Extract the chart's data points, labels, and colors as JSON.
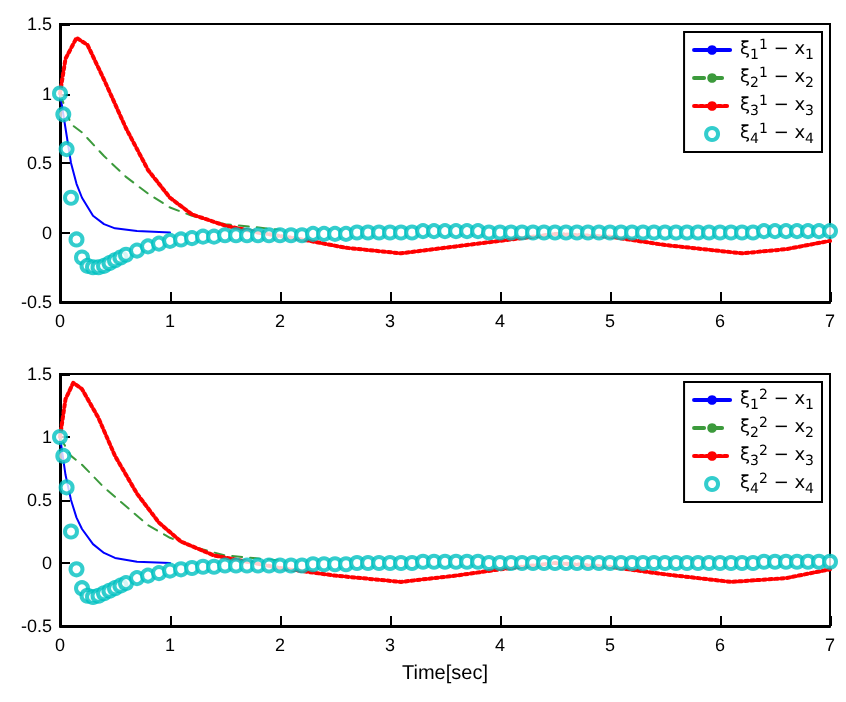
{
  "chart_data": [
    {
      "type": "line",
      "xlim": [
        0,
        7
      ],
      "xticks": [
        0,
        1,
        2,
        3,
        4,
        5,
        6,
        7
      ],
      "ylim": [
        -0.5,
        1.5
      ],
      "yticks": [
        -0.5,
        0,
        0.5,
        1,
        1.5
      ],
      "grid": false,
      "legend": "top right",
      "series": [
        {
          "name": "ξ$_{1}$$^{1}$ − x$_{1}$",
          "color": "#0000ff",
          "type": "line",
          "line_style": "solid",
          "marker": "none",
          "x": [
            0,
            0.05,
            0.1,
            0.15,
            0.2,
            0.3,
            0.4,
            0.5,
            0.7,
            1
          ],
          "values": [
            1,
            0.75,
            0.5,
            0.35,
            0.25,
            0.12,
            0.06,
            0.03,
            0.01,
            0
          ]
        },
        {
          "name": "ξ$_{2}$$^{1}$ − x$_{2}$",
          "color": "#3c9a3c",
          "type": "line",
          "line_style": "dashed",
          "marker": "none",
          "x": [
            0,
            0.1,
            0.2,
            0.4,
            0.6,
            0.8,
            1,
            1.2,
            1.5,
            2
          ],
          "values": [
            1,
            0.78,
            0.72,
            0.55,
            0.4,
            0.28,
            0.18,
            0.12,
            0.06,
            0.02
          ]
        },
        {
          "name": "ξ$_{3}$$^{1}$ − x$_{3}$",
          "color": "#ff0000",
          "type": "line",
          "line_style": "dotted",
          "marker": "none",
          "x": [
            0,
            0.05,
            0.15,
            0.25,
            0.4,
            0.6,
            0.8,
            1,
            1.2,
            1.5,
            1.8,
            2.2,
            2.6,
            3.1,
            3.6,
            4,
            4.5,
            5,
            5.5,
            6.2,
            6.6,
            7
          ],
          "values": [
            1,
            1.25,
            1.4,
            1.35,
            1.1,
            0.75,
            0.45,
            0.25,
            0.13,
            0.05,
            0,
            -0.05,
            -0.11,
            -0.15,
            -0.1,
            -0.06,
            -0.01,
            -0.03,
            -0.09,
            -0.15,
            -0.12,
            -0.06
          ]
        },
        {
          "name": "ξ$_{4}$$^{1}$ − x$_{4}$",
          "color": "#00c0c0",
          "type": "scatter",
          "marker": "circle",
          "x": [
            0,
            0.03,
            0.06,
            0.1,
            0.15,
            0.2,
            0.25,
            0.3,
            0.35,
            0.4,
            0.45,
            0.5,
            0.55,
            0.6,
            0.7,
            0.8,
            0.9,
            1,
            1.1,
            1.2,
            1.3,
            1.4,
            1.5,
            1.6,
            1.7,
            1.8,
            1.9,
            2,
            2.1,
            2.2,
            2.3,
            2.4,
            2.5,
            2.6,
            2.7,
            2.8,
            2.9,
            3,
            3.1,
            3.2,
            3.3,
            3.4,
            3.5,
            3.6,
            3.7,
            3.8,
            3.9,
            4,
            4.1,
            4.2,
            4.3,
            4.4,
            4.5,
            4.6,
            4.7,
            4.8,
            4.9,
            5,
            5.1,
            5.2,
            5.3,
            5.4,
            5.5,
            5.6,
            5.7,
            5.8,
            5.9,
            6,
            6.1,
            6.2,
            6.3,
            6.4,
            6.5,
            6.6,
            6.7,
            6.8,
            6.9,
            7
          ],
          "values": [
            1,
            0.85,
            0.6,
            0.25,
            -0.05,
            -0.18,
            -0.24,
            -0.25,
            -0.25,
            -0.24,
            -0.22,
            -0.2,
            -0.18,
            -0.16,
            -0.13,
            -0.1,
            -0.08,
            -0.06,
            -0.05,
            -0.04,
            -0.03,
            -0.03,
            -0.02,
            -0.02,
            -0.02,
            -0.02,
            -0.02,
            -0.02,
            -0.02,
            -0.02,
            -0.01,
            -0.01,
            -0.01,
            -0.01,
            0,
            0,
            0,
            0,
            0,
            0,
            0.01,
            0.01,
            0.01,
            0.01,
            0.01,
            0.01,
            0,
            0,
            0,
            0,
            0,
            0,
            0,
            0,
            0,
            0,
            0,
            0,
            0,
            0,
            0,
            0,
            0,
            0,
            0,
            0,
            0,
            0,
            0,
            0,
            0,
            0.01,
            0.01,
            0.01,
            0.01,
            0.01,
            0.01,
            0.01
          ]
        }
      ]
    },
    {
      "type": "line",
      "xlabel": "Time[sec]",
      "xlim": [
        0,
        7
      ],
      "xticks": [
        0,
        1,
        2,
        3,
        4,
        5,
        6,
        7
      ],
      "ylim": [
        -0.5,
        1.5
      ],
      "yticks": [
        -0.5,
        0,
        0.5,
        1,
        1.5
      ],
      "grid": false,
      "legend": "top right",
      "series": [
        {
          "name": "ξ$_{1}$$^{2}$ − x$_{1}$",
          "color": "#0000ff",
          "type": "line",
          "line_style": "solid",
          "marker": "none",
          "x": [
            0,
            0.05,
            0.1,
            0.15,
            0.2,
            0.3,
            0.4,
            0.5,
            0.7,
            1
          ],
          "values": [
            1,
            0.7,
            0.5,
            0.36,
            0.27,
            0.15,
            0.08,
            0.04,
            0.01,
            0
          ]
        },
        {
          "name": "ξ$_{2}$$^{2}$ − x$_{2}$",
          "color": "#3c9a3c",
          "type": "line",
          "line_style": "dashed",
          "marker": "none",
          "x": [
            0,
            0.1,
            0.2,
            0.4,
            0.6,
            0.8,
            1,
            1.2,
            1.5,
            2
          ],
          "values": [
            1,
            0.85,
            0.78,
            0.6,
            0.45,
            0.3,
            0.2,
            0.13,
            0.06,
            0.02
          ]
        },
        {
          "name": "ξ$_{3}$$^{2}$ − x$_{3}$",
          "color": "#ff0000",
          "type": "line",
          "line_style": "dotted",
          "marker": "none",
          "x": [
            0,
            0.05,
            0.12,
            0.2,
            0.35,
            0.5,
            0.7,
            0.9,
            1.1,
            1.4,
            1.7,
            2,
            2.5,
            3.1,
            3.6,
            4,
            4.5,
            5,
            5.5,
            6.1,
            6.6,
            7
          ],
          "values": [
            1,
            1.3,
            1.43,
            1.38,
            1.15,
            0.85,
            0.55,
            0.32,
            0.17,
            0.06,
            0.01,
            -0.04,
            -0.1,
            -0.15,
            -0.1,
            -0.05,
            0,
            -0.03,
            -0.09,
            -0.15,
            -0.12,
            -0.05
          ]
        },
        {
          "name": "ξ$_{4}$$^{2}$ − x$_{4}$",
          "color": "#00c0c0",
          "type": "scatter",
          "marker": "circle",
          "x": [
            0,
            0.03,
            0.06,
            0.1,
            0.15,
            0.2,
            0.25,
            0.3,
            0.35,
            0.4,
            0.45,
            0.5,
            0.55,
            0.6,
            0.7,
            0.8,
            0.9,
            1,
            1.1,
            1.2,
            1.3,
            1.4,
            1.5,
            1.6,
            1.7,
            1.8,
            1.9,
            2,
            2.1,
            2.2,
            2.3,
            2.4,
            2.5,
            2.6,
            2.7,
            2.8,
            2.9,
            3,
            3.1,
            3.2,
            3.3,
            3.4,
            3.5,
            3.6,
            3.7,
            3.8,
            3.9,
            4,
            4.1,
            4.2,
            4.3,
            4.4,
            4.5,
            4.6,
            4.7,
            4.8,
            4.9,
            5,
            5.1,
            5.2,
            5.3,
            5.4,
            5.5,
            5.6,
            5.7,
            5.8,
            5.9,
            6,
            6.1,
            6.2,
            6.3,
            6.4,
            6.5,
            6.6,
            6.7,
            6.8,
            6.9,
            7
          ],
          "values": [
            1,
            0.85,
            0.6,
            0.25,
            -0.05,
            -0.2,
            -0.26,
            -0.27,
            -0.26,
            -0.24,
            -0.22,
            -0.2,
            -0.18,
            -0.16,
            -0.12,
            -0.1,
            -0.08,
            -0.06,
            -0.05,
            -0.04,
            -0.03,
            -0.03,
            -0.02,
            -0.02,
            -0.02,
            -0.02,
            -0.02,
            -0.02,
            -0.02,
            -0.02,
            -0.01,
            -0.01,
            -0.01,
            -0.01,
            0,
            0,
            0,
            0,
            0,
            0,
            0.01,
            0.01,
            0.01,
            0.01,
            0.01,
            0.01,
            0,
            0,
            0,
            0,
            0,
            0,
            0,
            0,
            0,
            0,
            0,
            0,
            0,
            0,
            0,
            0,
            0,
            0,
            0,
            0,
            0,
            0,
            0,
            0,
            0,
            0.01,
            0.01,
            0.01,
            0.01,
            0.01,
            0.01,
            0.01
          ]
        }
      ]
    }
  ]
}
